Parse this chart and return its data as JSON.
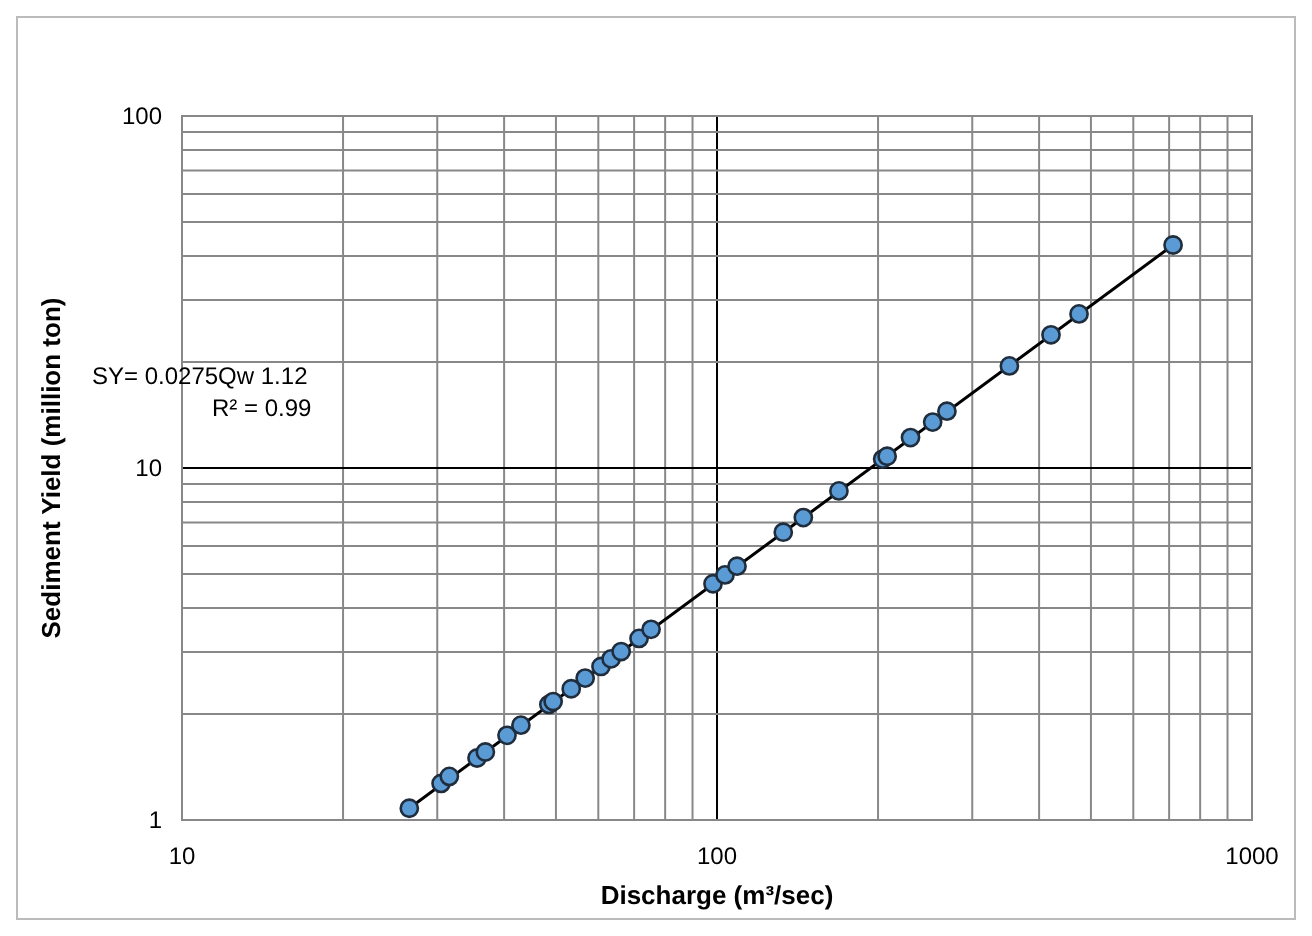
{
  "chart_data": {
    "type": "scatter",
    "xlabel": "Discharge (m³/sec)",
    "ylabel": "Sediment Yield (million ton)",
    "log": "xy",
    "grid": true,
    "marker": "circle",
    "xlim": [
      10,
      1000
    ],
    "ylim": [
      1,
      100
    ],
    "xticks": [
      10,
      {
        "value": 20,
        "label": null
      },
      {
        "value": 30,
        "label": null
      },
      {
        "value": 40,
        "label": null
      },
      {
        "value": 50,
        "label": null
      },
      {
        "value": 60,
        "label": null
      },
      {
        "value": 70,
        "label": null
      },
      {
        "value": 80,
        "label": null
      },
      {
        "value": 90,
        "label": null
      },
      100,
      {
        "value": 200,
        "label": null
      },
      {
        "value": 300,
        "label": null
      },
      {
        "value": 400,
        "label": null
      },
      {
        "value": 500,
        "label": null
      },
      {
        "value": 600,
        "label": null
      },
      {
        "value": 700,
        "label": null
      },
      {
        "value": 800,
        "label": null
      },
      {
        "value": 900,
        "label": null
      },
      1000
    ],
    "yticks": [
      1,
      {
        "value": 2,
        "label": null
      },
      {
        "value": 3,
        "label": null
      },
      {
        "value": 4,
        "label": null
      },
      {
        "value": 5,
        "label": null
      },
      {
        "value": 6,
        "label": null
      },
      {
        "value": 7,
        "label": null
      },
      {
        "value": 8,
        "label": null
      },
      {
        "value": 9,
        "label": null
      },
      10,
      {
        "value": 20,
        "label": null
      },
      {
        "value": 30,
        "label": null
      },
      {
        "value": 40,
        "label": null
      },
      {
        "value": 50,
        "label": null
      },
      {
        "value": 60,
        "label": null
      },
      {
        "value": 70,
        "label": null
      },
      {
        "value": 80,
        "label": null
      },
      {
        "value": 90,
        "label": null
      },
      100
    ],
    "series": [
      {
        "type": "line",
        "color": "#000000",
        "marker": "none",
        "x": [
          26.6,
          712
        ],
        "values": [
          1.08,
          43.0
        ]
      },
      {
        "color": "#5b9bd5",
        "x": [
          26.6,
          30.5,
          31.6,
          35.6,
          36.9,
          40.5,
          43.0,
          48.5,
          49.4,
          53.4,
          56.7,
          60.7,
          63.4,
          66.2,
          71.5,
          75.3,
          98.3,
          103.5,
          109,
          133,
          145,
          169,
          204,
          208,
          230,
          253,
          269,
          352,
          421,
          475,
          712
        ],
        "values": [
          1.08,
          1.27,
          1.33,
          1.5,
          1.56,
          1.74,
          1.86,
          2.13,
          2.17,
          2.36,
          2.53,
          2.73,
          2.87,
          3.01,
          3.28,
          3.48,
          4.69,
          4.97,
          5.26,
          6.57,
          7.23,
          8.61,
          10.6,
          10.8,
          12.2,
          13.5,
          14.5,
          19.5,
          23.9,
          27.4,
          43.0
        ]
      }
    ],
    "annotations": [
      "SY= 0.0275Qw 1.12",
      "R² = 0.99"
    ]
  }
}
